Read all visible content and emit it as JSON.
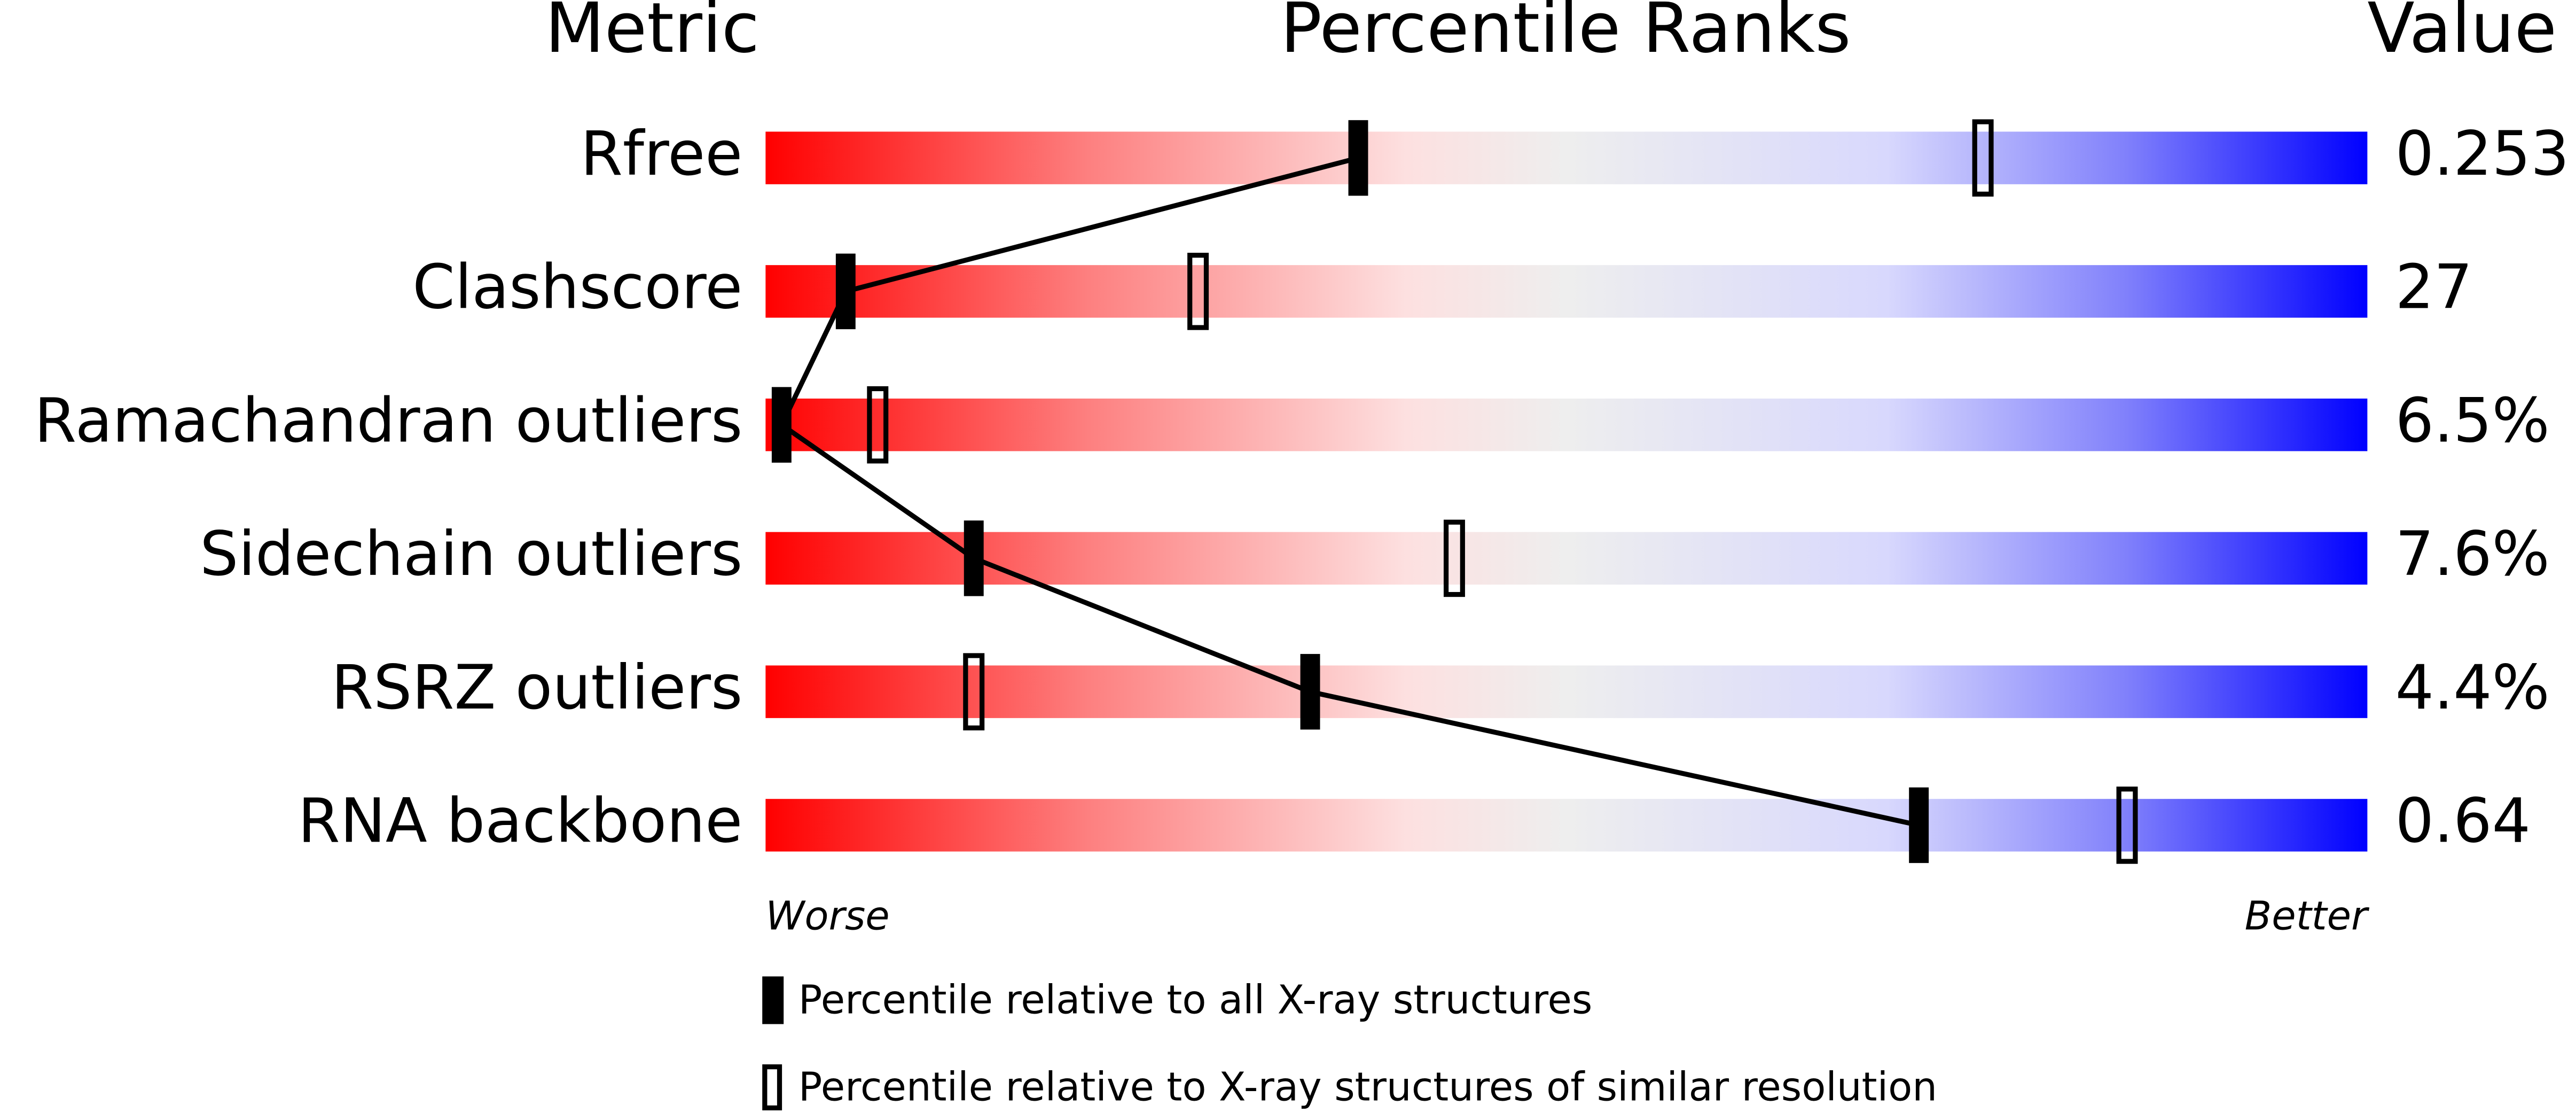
{
  "chart_data": {
    "type": "slider",
    "headers": [
      "Metric",
      "Percentile Ranks",
      "Value"
    ],
    "categories": [
      "Rfree",
      "Clashscore",
      "Ramachandran outliers",
      "Sidechain outliers",
      "RSRZ outliers",
      "RNA backbone"
    ],
    "values": [
      "0.253",
      "27",
      "6.5%",
      "7.6%",
      "4.4%",
      "0.64"
    ],
    "xlim": [
      0,
      100
    ],
    "axis_labels": [
      "Worse",
      "Better"
    ],
    "series": [
      {
        "name": "Percentile relative to all X-ray structures",
        "color": "#000000",
        "style": "filled",
        "values": [
          37,
          5,
          1,
          13,
          34,
          72
        ]
      },
      {
        "name": "Percentile relative to X-ray structures of similar resolution",
        "color": "#000000",
        "style": "open",
        "values": [
          76,
          27,
          7,
          43,
          13,
          85
        ]
      }
    ]
  }
}
